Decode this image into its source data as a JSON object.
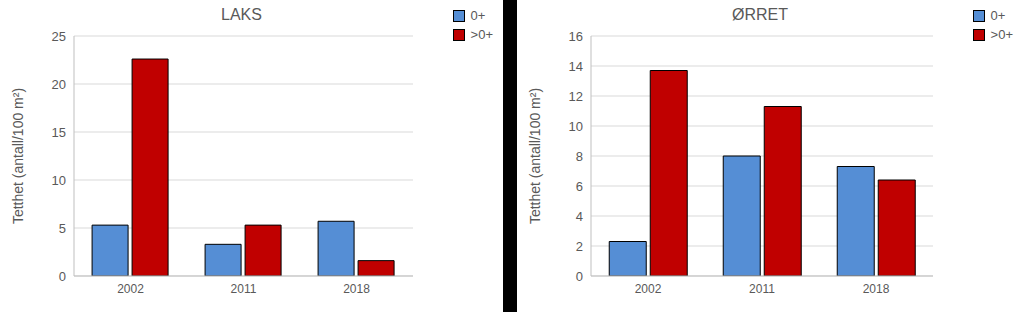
{
  "chart_data": [
    {
      "type": "bar",
      "title": "LAKS",
      "ylabel": "Tetthet (antall/100 m²)",
      "categories": [
        "2002",
        "2011",
        "2018"
      ],
      "series": [
        {
          "name": "0+",
          "color": "#558ed5",
          "values": [
            5.3,
            3.3,
            5.7
          ]
        },
        {
          "name": ">0+",
          "color": "#c00000",
          "values": [
            22.6,
            5.3,
            1.6
          ]
        }
      ],
      "ylim": [
        0,
        25
      ],
      "yticks": [
        0,
        5,
        10,
        15,
        20,
        25
      ],
      "grid": true,
      "legend": "upper right"
    },
    {
      "type": "bar",
      "title": "ØRRET",
      "ylabel": "Tetthet (antall/100 m²)",
      "categories": [
        "2002",
        "2011",
        "2018"
      ],
      "series": [
        {
          "name": "0+",
          "color": "#558ed5",
          "values": [
            2.3,
            8.0,
            7.3
          ]
        },
        {
          "name": ">0+",
          "color": "#c00000",
          "values": [
            13.7,
            11.3,
            6.4
          ]
        }
      ],
      "ylim": [
        0,
        16
      ],
      "yticks": [
        0,
        2,
        4,
        6,
        8,
        10,
        12,
        14,
        16
      ],
      "grid": true,
      "legend": "upper right"
    }
  ]
}
